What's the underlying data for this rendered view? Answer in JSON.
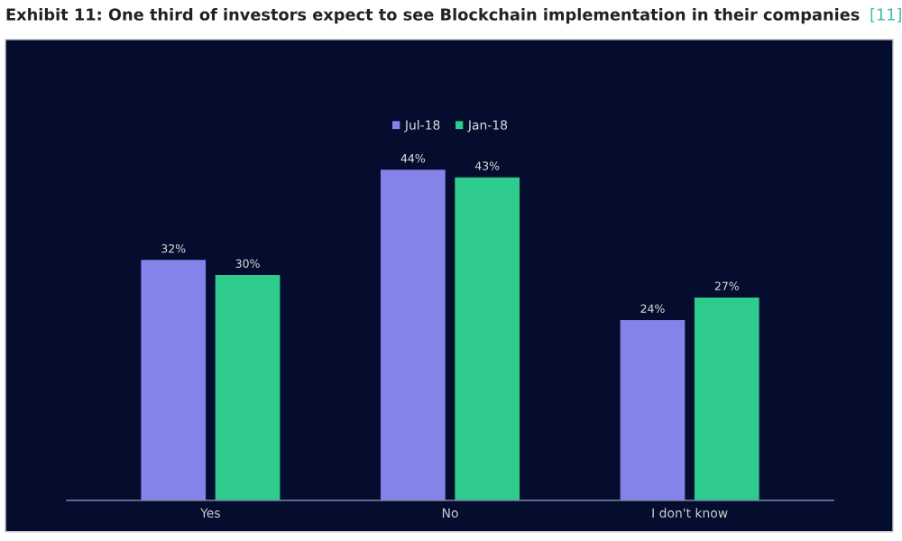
{
  "chart_data": {
    "type": "bar",
    "title": "Exhibit 11: One third of investors expect to see Blockchain implementation in their companies",
    "annotations": [
      "[11]"
    ],
    "categories": [
      "Yes",
      "No",
      "I don't know"
    ],
    "series": [
      {
        "name": "Jul-18",
        "color": "#8383ea",
        "values": [
          32,
          44,
          24
        ],
        "value_labels": [
          "32%",
          "44%",
          "24%"
        ]
      },
      {
        "name": "Jan-18",
        "color": "#2fcb8c",
        "values": [
          30,
          43,
          27
        ],
        "value_labels": [
          "30%",
          "43%",
          "27%"
        ]
      }
    ],
    "legend": "top",
    "grid": false,
    "tick_labels": "x"
  }
}
